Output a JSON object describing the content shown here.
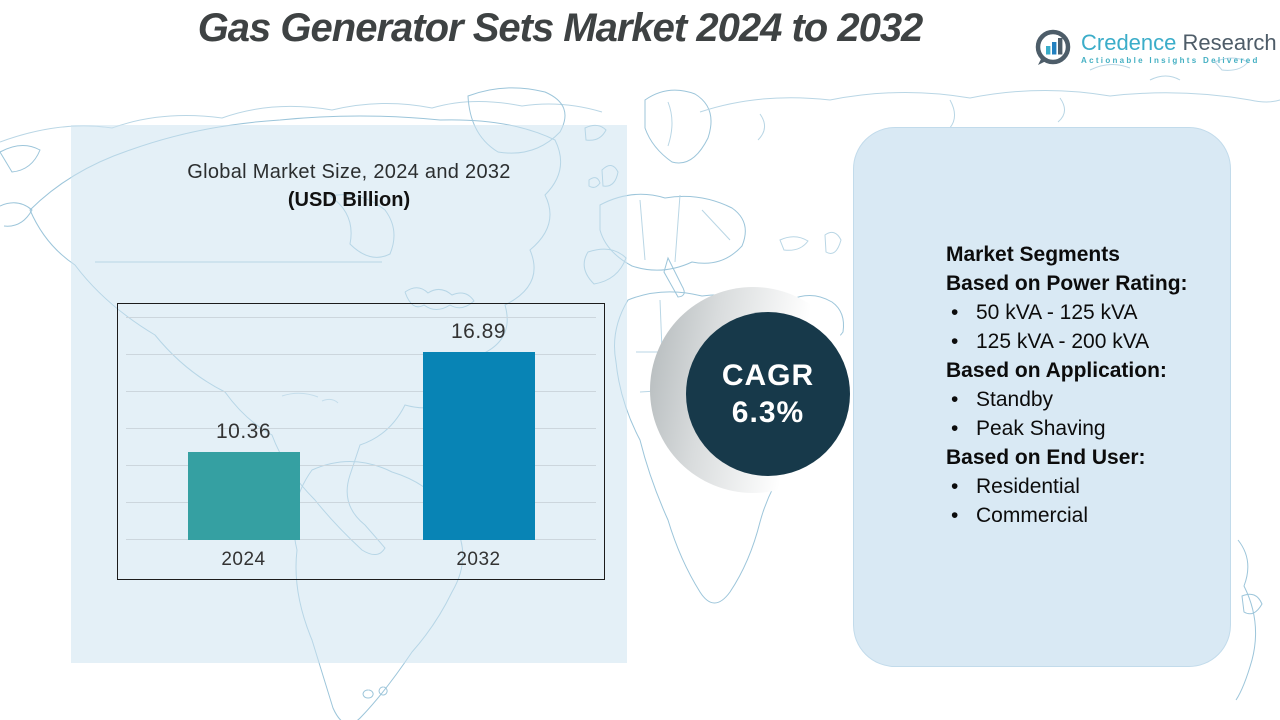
{
  "header": {
    "title": "Gas Generator Sets Market 2024 to 2032"
  },
  "logo": {
    "brand_primary": "Credence",
    "brand_secondary": "Research",
    "tagline": "Actionable Insights Delivered",
    "icon": "bar-chart-bubble-icon",
    "colors": {
      "primary": "#3badc9",
      "secondary": "#4e5c68"
    }
  },
  "chart_data": {
    "type": "bar",
    "title": "Global Market Size, 2024 and 2032",
    "subtitle": "(USD Billion)",
    "categories": [
      "2024",
      "2032"
    ],
    "values": [
      10.36,
      16.89
    ],
    "value_labels": [
      "10.36",
      "16.89"
    ],
    "bar_colors": [
      "#35a0a2",
      "#0884b5"
    ],
    "ylim": [
      5,
      18.5
    ],
    "gridlines": 7,
    "grid_on": true,
    "legend": "none",
    "xlabel": "",
    "ylabel": ""
  },
  "cagr": {
    "label": "CAGR",
    "value": "6.3%",
    "bg": "#17394a"
  },
  "segments": {
    "title": "Market Segments",
    "groups": [
      {
        "heading": "Based on Power Rating:",
        "items": [
          "50 kVA - 125 kVA",
          "125 kVA - 200 kVA"
        ]
      },
      {
        "heading": "Based on Application:",
        "items": [
          "Standby",
          "Peak Shaving"
        ]
      },
      {
        "heading": "Based on End User:",
        "items": [
          "Residential",
          "Commercial"
        ]
      }
    ]
  }
}
